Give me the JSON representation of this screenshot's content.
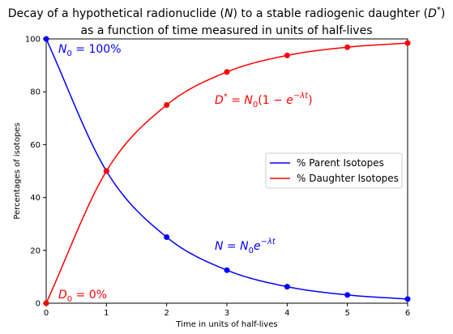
{
  "chart_data": {
    "type": "line",
    "title_line1": "Decay of a hypothetical radionuclide (N) to a stable radiogenic daughter (D*)",
    "title_line2": "as a function of time measured in units of half-lives",
    "xlabel": "Time in units of half-lives",
    "ylabel": "Percentages of isotopes",
    "xlim": [
      0,
      6
    ],
    "ylim": [
      0,
      100
    ],
    "x_ticks": [
      0,
      1,
      2,
      3,
      4,
      5,
      6
    ],
    "y_ticks": [
      0,
      20,
      40,
      60,
      80,
      100
    ],
    "grid": false,
    "legend_position": "center-right",
    "series": [
      {
        "name": "% Parent Isotopes",
        "color": "#0000ff",
        "x": [
          0,
          1,
          2,
          3,
          4,
          5,
          6
        ],
        "values": [
          100,
          50,
          25,
          12.5,
          6.25,
          3.125,
          1.5625
        ]
      },
      {
        "name": "% Daughter Isotopes",
        "color": "#ff0000",
        "x": [
          0,
          1,
          2,
          3,
          4,
          5,
          6
        ],
        "values": [
          0,
          50,
          75,
          87.5,
          93.75,
          96.875,
          98.4375
        ]
      }
    ],
    "annotations": [
      {
        "id": "n0",
        "text": "N₀ = 100%",
        "color": "#0000ff"
      },
      {
        "id": "d0",
        "text": "D₀ = 0%",
        "color": "#ff0000"
      },
      {
        "id": "dstar",
        "text": "D* = N₀(1 − e^(−λt))",
        "color": "#ff0000"
      },
      {
        "id": "nform",
        "text": "N = N₀e^(−λt)",
        "color": "#0000ff"
      }
    ]
  }
}
